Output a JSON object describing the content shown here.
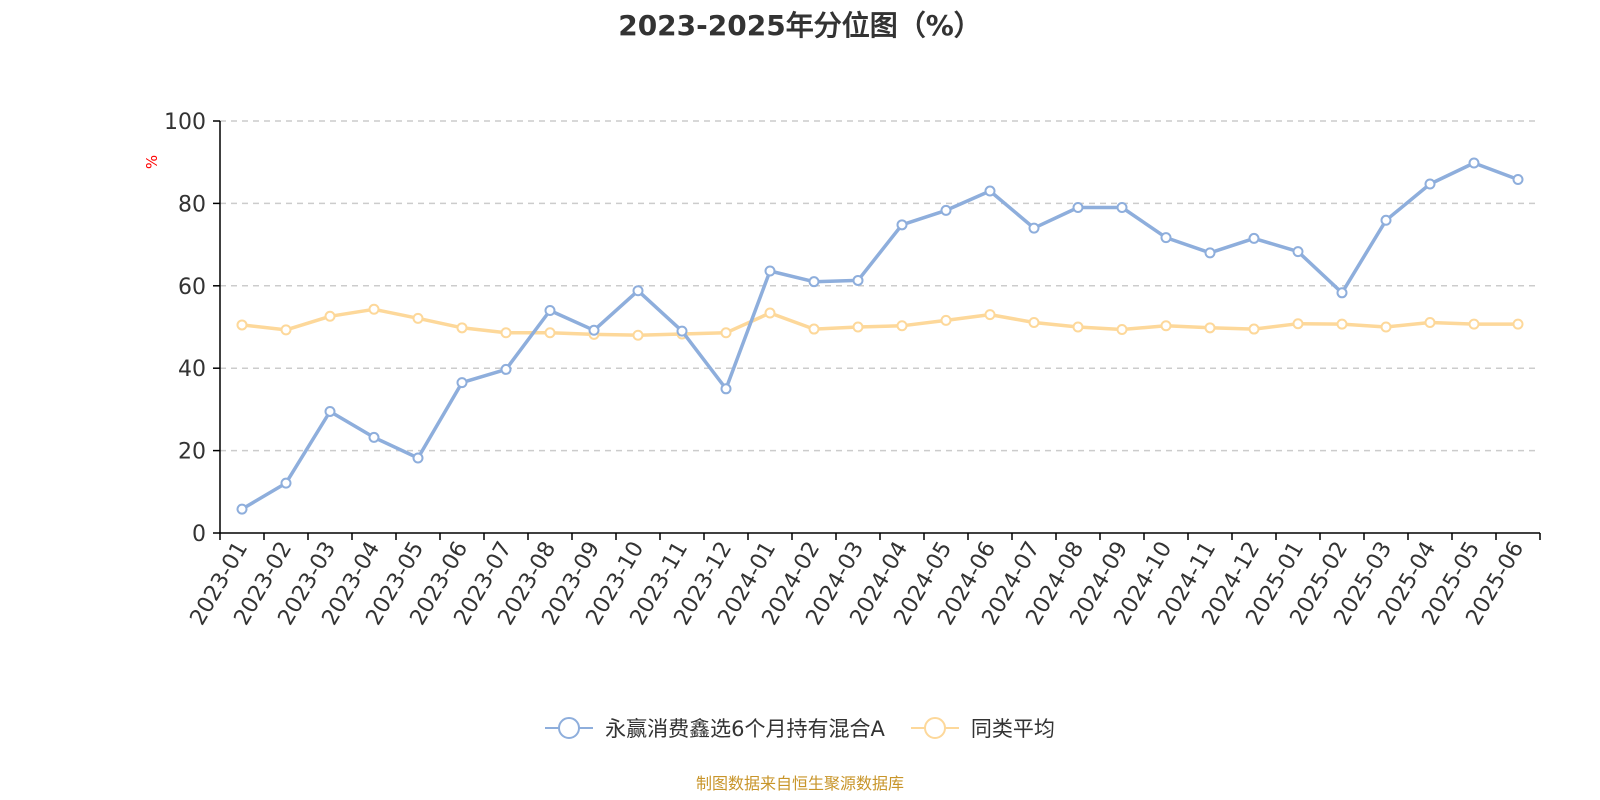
{
  "chart_data": {
    "type": "line",
    "title": "2023-2025年分位图（%）",
    "ylabel": "%",
    "xlabel": "",
    "ylim": [
      0,
      100
    ],
    "yticks": [
      0,
      20,
      40,
      60,
      80,
      100
    ],
    "grid": "horizontal-dashed",
    "legend_position": "bottom",
    "categories": [
      "2023-01",
      "2023-02",
      "2023-03",
      "2023-04",
      "2023-05",
      "2023-06",
      "2023-07",
      "2023-08",
      "2023-09",
      "2023-10",
      "2023-11",
      "2023-12",
      "2024-01",
      "2024-02",
      "2024-03",
      "2024-04",
      "2024-05",
      "2024-06",
      "2024-07",
      "2024-08",
      "2024-09",
      "2024-10",
      "2024-11",
      "2024-12",
      "2025-01",
      "2025-02",
      "2025-03",
      "2025-04",
      "2025-05",
      "2025-06"
    ],
    "series": [
      {
        "name": "永赢消费鑫选6个月持有混合A",
        "color": "#8eaedc",
        "values": [
          5.8,
          12.1,
          29.5,
          23.2,
          18.2,
          36.5,
          39.7,
          54.0,
          49.2,
          58.8,
          49.0,
          35.0,
          63.6,
          61.0,
          61.3,
          74.8,
          78.3,
          83.0,
          74.0,
          79.0,
          79.0,
          71.7,
          68.0,
          71.5,
          68.3,
          58.3,
          75.9,
          84.7,
          89.8,
          85.8
        ]
      },
      {
        "name": "同类平均",
        "color": "#fdd89a",
        "values": [
          50.5,
          49.3,
          52.6,
          54.3,
          52.1,
          49.8,
          48.6,
          48.6,
          48.2,
          48.0,
          48.3,
          48.6,
          53.4,
          49.5,
          50.0,
          50.3,
          51.6,
          53.0,
          51.1,
          50.0,
          49.4,
          50.3,
          49.8,
          49.5,
          50.8,
          50.7,
          50.0,
          51.1,
          50.7,
          50.7
        ]
      }
    ]
  },
  "source_note": "制图数据来自恒生聚源数据库",
  "colors": {
    "axis": "#000000",
    "grid": "#cccccc",
    "ylabel": "#ff0000",
    "source": "#c8952a"
  }
}
